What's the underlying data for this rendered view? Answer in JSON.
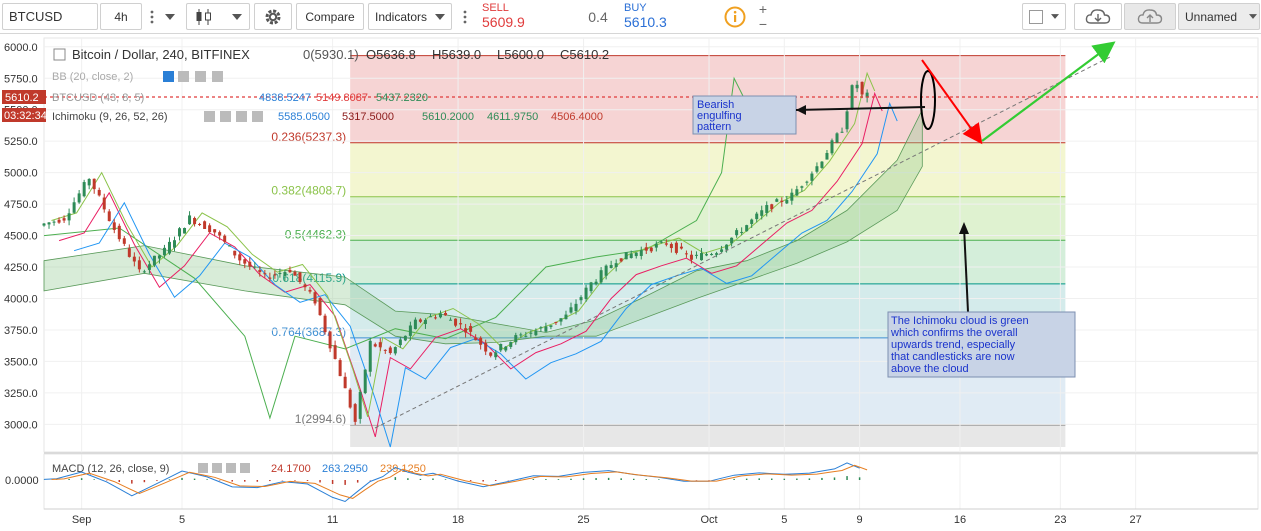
{
  "toolbar": {
    "symbol": "BTCUSD",
    "interval": "4h",
    "compare_label": "Compare",
    "indicators_label": "Indicators",
    "sell_label": "SELL",
    "sell_price": "5609.9",
    "spread": "0.4",
    "buy_label": "BUY",
    "buy_price": "5610.3",
    "layout_name": "Unnamed",
    "plus": "+",
    "minus": "−"
  },
  "legend": {
    "title": "Bitcoin / Dollar, 240, BITFINEX",
    "open": "O5636.8",
    "high": "H5639.0",
    "low": "L5600.0",
    "close": "C5610.2",
    "bb_label": "BB (20, close, 2)",
    "envelope_label": "BTCUSD (43, 8, 5)",
    "env_v1": "4838.5247",
    "env_v2": "5149.8087",
    "env_v3": "5437.2320",
    "ichimoku_label": "Ichimoku (9, 26, 52, 26)",
    "ichi_v1": "5585.0500",
    "ichi_v2": "5317.5000",
    "ichi_v3": "5610.2000",
    "ichi_v4": "4611.9750",
    "ichi_v5": "4506.4000",
    "macd_label": "MACD (12, 26, close, 9)",
    "macd_v1": "24.1700",
    "macd_v2": "263.2950",
    "macd_v3": "239.1250"
  },
  "price_tags": {
    "last_price": "5610.2",
    "countdown": "03:32:34"
  },
  "fib_top_label": "0(5930.1)",
  "annotations": {
    "bearish": [
      "Bearish",
      "engulfing",
      "pattern"
    ],
    "ichimoku": [
      "The Ichimoku cloud is green",
      "which confirms the overall",
      "upwards trend, especially",
      "that candlesticks are now",
      "above the cloud"
    ]
  },
  "colors": {
    "up": "#2e8b57",
    "down": "#c0392b",
    "arrow_red": "#ff0000",
    "arrow_green": "#33cc33",
    "last_price_line": "#e03b3b",
    "fib_line_gray": "#777777"
  },
  "chart_data": {
    "type": "candlestick",
    "title": "Bitcoin / Dollar, 240, BITFINEX",
    "ylim": [
      2780,
      6070
    ],
    "y_ticks": [
      3000,
      3250,
      3500,
      3750,
      4000,
      4250,
      4500,
      4750,
      5000,
      5250,
      5500,
      5750,
      6000
    ],
    "y_tick_labels": [
      "3000.0",
      "3250.0",
      "3500.0",
      "3750.0",
      "4000.0",
      "4250.0",
      "4500.0",
      "4750.0",
      "5000.0",
      "5250.0",
      "5500.0",
      "5750.0",
      "6000.0"
    ],
    "time_axis": {
      "days_span": [
        0,
        42
      ],
      "labels": [
        {
          "day": 1.5,
          "text": "Sep"
        },
        {
          "day": 5.5,
          "text": "5"
        },
        {
          "day": 11.5,
          "text": "11"
        },
        {
          "day": 16.5,
          "text": "18"
        },
        {
          "day": 21.5,
          "text": "25"
        },
        {
          "day": 26.5,
          "text": "Oct"
        },
        {
          "day": 29.5,
          "text": "5"
        },
        {
          "day": 32.5,
          "text": "9"
        },
        {
          "day": 36.5,
          "text": "16"
        },
        {
          "day": 40.5,
          "text": "23"
        },
        {
          "day": 43.5,
          "text": "27"
        }
      ]
    },
    "fibonacci": {
      "start_day": 12.2,
      "end_day": 40.7,
      "levels": [
        {
          "ratio": "0",
          "price": 5930.1,
          "label": "0(5930.1)",
          "fill": "#f4cccc",
          "line": "#c0392b"
        },
        {
          "ratio": "0.236",
          "price": 5237.3,
          "label": "0.236(5237.3)",
          "fill": "#f1f4c8",
          "line": "#c0392b"
        },
        {
          "ratio": "0.382",
          "price": 4808.7,
          "label": "0.382(4808.7)",
          "fill": "#d9f0c8",
          "line": "#8bc34a"
        },
        {
          "ratio": "0.5",
          "price": 4462.3,
          "label": "0.5(4462.3)",
          "fill": "#cdebd4",
          "line": "#4caf50"
        },
        {
          "ratio": "0.618",
          "price": 4115.9,
          "label": "0.618(4115.9)",
          "fill": "#cde8e8",
          "line": "#009688"
        },
        {
          "ratio": "0.764",
          "price": 3687.3,
          "label": "0.764(3687.3)",
          "fill": "#dbe7f2",
          "line": "#3f8fd2"
        },
        {
          "ratio": "1",
          "price": 2994.6,
          "label": "1(2994.6)",
          "fill": "#e3e3e3",
          "line": "#777777"
        }
      ]
    },
    "price_path": [
      [
        0,
        4580
      ],
      [
        1,
        4640
      ],
      [
        2,
        4960
      ],
      [
        3,
        4550
      ],
      [
        4,
        4210
      ],
      [
        5,
        4380
      ],
      [
        6,
        4640
      ],
      [
        7,
        4530
      ],
      [
        8,
        4310
      ],
      [
        9,
        4170
      ],
      [
        10,
        4230
      ],
      [
        11,
        3980
      ],
      [
        12,
        3400
      ],
      [
        12.6,
        3020
      ],
      [
        13.2,
        3650
      ],
      [
        14,
        3560
      ],
      [
        15,
        3810
      ],
      [
        16,
        3880
      ],
      [
        17,
        3760
      ],
      [
        18,
        3560
      ],
      [
        19,
        3690
      ],
      [
        20,
        3760
      ],
      [
        21,
        3860
      ],
      [
        22,
        4120
      ],
      [
        23,
        4310
      ],
      [
        24,
        4380
      ],
      [
        25,
        4440
      ],
      [
        26,
        4320
      ],
      [
        27,
        4380
      ],
      [
        28,
        4550
      ],
      [
        29,
        4720
      ],
      [
        30,
        4820
      ],
      [
        31,
        5050
      ],
      [
        32,
        5350
      ],
      [
        32.5,
        5750
      ],
      [
        32.8,
        5610
      ]
    ],
    "last_price": 5610.2,
    "ichimoku_cloud_upper": [
      [
        0,
        4300
      ],
      [
        4,
        4420
      ],
      [
        8,
        4260
      ],
      [
        12,
        4170
      ],
      [
        14,
        3900
      ],
      [
        16,
        3870
      ],
      [
        18,
        3800
      ],
      [
        20,
        3730
      ],
      [
        22,
        3830
      ],
      [
        24,
        4020
      ],
      [
        26,
        4220
      ],
      [
        28,
        4300
      ],
      [
        30,
        4460
      ],
      [
        32,
        4700
      ],
      [
        34,
        5100
      ],
      [
        35,
        5500
      ]
    ],
    "ichimoku_cloud_lower": [
      [
        0,
        4060
      ],
      [
        4,
        4200
      ],
      [
        8,
        4060
      ],
      [
        12,
        3950
      ],
      [
        14,
        3700
      ],
      [
        16,
        3640
      ],
      [
        18,
        3650
      ],
      [
        20,
        3700
      ],
      [
        22,
        3700
      ],
      [
        24,
        3850
      ],
      [
        26,
        4000
      ],
      [
        28,
        4140
      ],
      [
        30,
        4280
      ],
      [
        32,
        4450
      ],
      [
        34,
        4700
      ],
      [
        35,
        5050
      ]
    ],
    "chikou_span": [
      [
        0,
        4500
      ],
      [
        3,
        4560
      ],
      [
        6,
        4160
      ],
      [
        8,
        3700
      ],
      [
        9,
        3050
      ],
      [
        10,
        3700
      ],
      [
        12,
        3600
      ],
      [
        14,
        3760
      ],
      [
        16,
        3680
      ],
      [
        18,
        3850
      ],
      [
        20,
        4250
      ],
      [
        22,
        4330
      ],
      [
        24,
        4390
      ],
      [
        26,
        4620
      ],
      [
        27,
        5000
      ],
      [
        27.5,
        5750
      ],
      [
        28,
        5550
      ]
    ],
    "macd": {
      "label": "MACD (12, 26, close, 9)",
      "zero_label": "0.0000",
      "values": [
        24.17,
        263.295,
        239.125
      ]
    }
  }
}
